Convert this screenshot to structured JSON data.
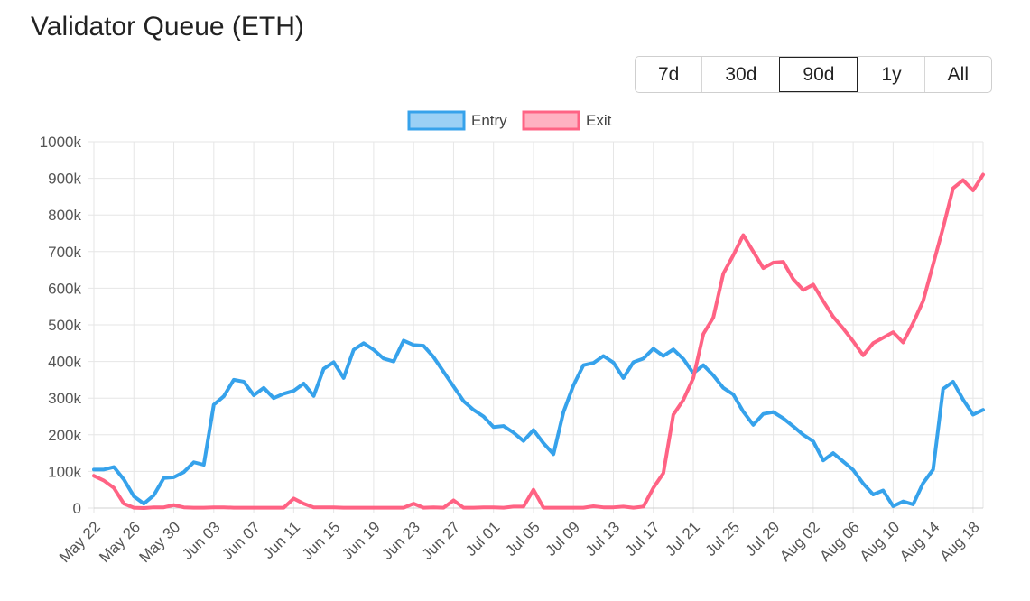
{
  "header": {
    "title": "Validator Queue (ETH)"
  },
  "range_selector": {
    "options": [
      "7d",
      "30d",
      "90d",
      "1y",
      "All"
    ],
    "selected": "90d"
  },
  "colors": {
    "entry_line": "#36A2EB",
    "entry_fill": "#9AD0F5",
    "exit_line": "#FF6384",
    "exit_fill": "#FFB1C1",
    "grid": "#e6e6e6"
  },
  "chart_data": {
    "type": "line",
    "title": "Validator Queue (ETH)",
    "legend_position": "top",
    "grid": true,
    "ylim": [
      0,
      1000000
    ],
    "y_ticks": [
      0,
      100000,
      200000,
      300000,
      400000,
      500000,
      600000,
      700000,
      800000,
      900000,
      1000000
    ],
    "y_tick_labels": [
      "0",
      "100k",
      "200k",
      "300k",
      "400k",
      "500k",
      "600k",
      "700k",
      "800k",
      "900k",
      "1000k"
    ],
    "x_start": "May 22",
    "x_end": "Aug 20",
    "x_tick_labels": [
      "May 22",
      "May 26",
      "May 30",
      "Jun 03",
      "Jun 07",
      "Jun 11",
      "Jun 15",
      "Jun 19",
      "Jun 23",
      "Jun 27",
      "Jul 01",
      "Jul 05",
      "Jul 09",
      "Jul 13",
      "Jul 17",
      "Jul 21",
      "Jul 25",
      "Jul 29",
      "Aug 02",
      "Aug 06",
      "Aug 10",
      "Aug 14",
      "Aug 18"
    ],
    "series": [
      {
        "name": "Entry",
        "values": [
          105000,
          105000,
          112000,
          78000,
          32000,
          12000,
          35000,
          82000,
          84000,
          98000,
          125000,
          118000,
          282000,
          305000,
          350000,
          345000,
          308000,
          328000,
          300000,
          312000,
          320000,
          340000,
          306000,
          380000,
          398000,
          355000,
          432000,
          450000,
          432000,
          408000,
          400000,
          457000,
          445000,
          443000,
          412000,
          372000,
          332000,
          292000,
          268000,
          250000,
          221000,
          224000,
          206000,
          183000,
          213000,
          177000,
          147000,
          262000,
          335000,
          390000,
          396000,
          415000,
          397000,
          355000,
          398000,
          408000,
          435000,
          415000,
          433000,
          407000,
          368000,
          390000,
          362000,
          328000,
          310000,
          263000,
          227000,
          257000,
          262000,
          245000,
          223000,
          200000,
          182000,
          130000,
          150000,
          127000,
          104000,
          67000,
          37000,
          48000,
          5000,
          18000,
          10000,
          68000,
          105000,
          325000,
          345000,
          296000,
          255000,
          268000
        ]
      },
      {
        "name": "Exit",
        "values": [
          88000,
          75000,
          55000,
          12000,
          1000,
          0,
          2000,
          2000,
          8000,
          2000,
          1000,
          1000,
          2000,
          2000,
          1000,
          1000,
          1000,
          1000,
          1000,
          1000,
          26000,
          12000,
          2000,
          2000,
          2000,
          1000,
          1000,
          1000,
          1000,
          1000,
          1000,
          1000,
          12000,
          1000,
          2000,
          1000,
          21000,
          1000,
          1000,
          2000,
          2000,
          1000,
          4000,
          4000,
          50000,
          1000,
          1000,
          1000,
          1000,
          1000,
          5000,
          2000,
          2000,
          4000,
          1000,
          4000,
          55000,
          95000,
          255000,
          295000,
          355000,
          475000,
          520000,
          640000,
          690000,
          745000,
          700000,
          655000,
          670000,
          672000,
          625000,
          595000,
          610000,
          565000,
          522000,
          490000,
          455000,
          417000,
          450000,
          465000,
          480000,
          452000,
          505000,
          565000,
          665000,
          765000,
          873000,
          895000,
          867000,
          910000
        ]
      }
    ]
  }
}
